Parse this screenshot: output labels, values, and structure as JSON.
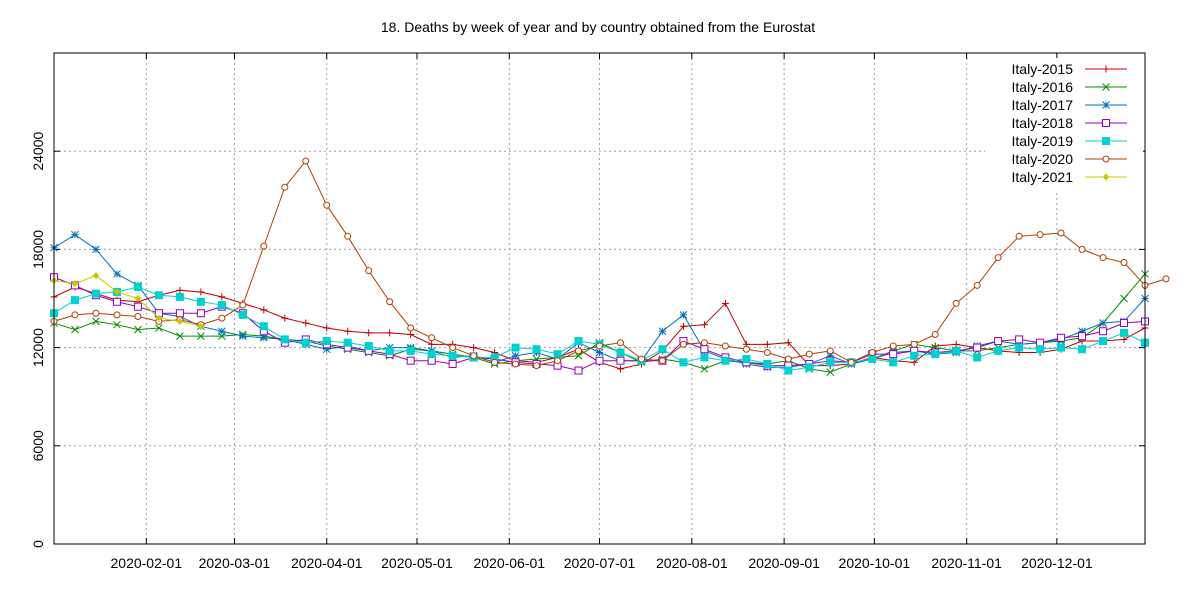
{
  "chart_data": {
    "type": "line",
    "title": "18. Deaths by week of year and by country obtained from the Eurostat",
    "xlabel": "",
    "ylabel": "",
    "ylim": [
      0,
      24000
    ],
    "yticks": [
      0,
      6000,
      12000,
      18000,
      24000
    ],
    "xlim": [
      0,
      52
    ],
    "xticks": [
      {
        "label": "2020-02-01",
        "week": 4.4
      },
      {
        "label": "2020-03-01",
        "week": 8.6
      },
      {
        "label": "2020-04-01",
        "week": 13.0
      },
      {
        "label": "2020-05-01",
        "week": 17.3
      },
      {
        "label": "2020-06-01",
        "week": 21.7
      },
      {
        "label": "2020-07-01",
        "week": 26.0
      },
      {
        "label": "2020-08-01",
        "week": 30.4
      },
      {
        "label": "2020-09-01",
        "week": 34.8
      },
      {
        "label": "2020-10-01",
        "week": 39.1
      },
      {
        "label": "2020-11-01",
        "week": 43.5
      },
      {
        "label": "2020-12-01",
        "week": 47.8
      }
    ],
    "grid": true,
    "legend_position": "top-right",
    "series": [
      {
        "name": "Italy-2015",
        "color": "#c00000",
        "marker": "plus",
        "start_week": 0,
        "values": [
          15100,
          15700,
          15300,
          14900,
          14800,
          15200,
          15500,
          15400,
          15100,
          14700,
          14300,
          13800,
          13500,
          13200,
          13000,
          12900,
          12900,
          12800,
          12200,
          12200,
          12000,
          11700,
          11200,
          11100,
          11400,
          11900,
          11100,
          10700,
          11000,
          11800,
          13300,
          13400,
          14700,
          12200,
          12200,
          12300,
          10900,
          10900,
          11000,
          11400,
          11200,
          11100,
          12100,
          12200,
          12000,
          11800,
          11700,
          11700,
          11900,
          12400,
          12400,
          12500,
          13200
        ]
      },
      {
        "name": "Italy-2016",
        "color": "#009000",
        "marker": "cross",
        "start_week": 0,
        "values": [
          13500,
          13100,
          13600,
          13400,
          13100,
          13200,
          12700,
          12700,
          12700,
          12800,
          12700,
          12500,
          12400,
          12100,
          11900,
          11700,
          11500,
          11900,
          11800,
          11600,
          11400,
          11000,
          11200,
          11300,
          11400,
          11500,
          12300,
          11700,
          11100,
          11300,
          11100,
          10700,
          11200,
          11100,
          11000,
          11200,
          10700,
          10500,
          11000,
          11300,
          11800,
          12200,
          12000,
          11800,
          11800,
          12000,
          12200,
          12300,
          12400,
          12600,
          13500,
          15000,
          16500
        ]
      },
      {
        "name": "Italy-2017",
        "color": "#0070c0",
        "marker": "star",
        "start_week": 0,
        "values": [
          18100,
          18900,
          18000,
          16500,
          15800,
          14100,
          13900,
          13300,
          13000,
          12700,
          12600,
          12500,
          12200,
          11900,
          12100,
          11800,
          12000,
          12000,
          11800,
          11400,
          11500,
          11100,
          11500,
          11700,
          11300,
          12300,
          11700,
          11200,
          11200,
          13000,
          14000,
          11800,
          11300,
          11000,
          10800,
          10800,
          11000,
          11500,
          11000,
          11300,
          11700,
          11800,
          11600,
          11700,
          12100,
          12400,
          12200,
          12300,
          12500,
          13000,
          13500,
          13600,
          15000
        ]
      },
      {
        "name": "Italy-2018",
        "color": "#9000c0",
        "marker": "square-open",
        "start_week": 0,
        "values": [
          16300,
          15800,
          15200,
          14800,
          14500,
          14100,
          14100,
          14100,
          14500,
          14100,
          13000,
          12300,
          12500,
          12200,
          12000,
          11800,
          11600,
          11200,
          11200,
          11000,
          11400,
          11300,
          11100,
          11000,
          10900,
          10600,
          11200,
          11200,
          11200,
          11200,
          12400,
          11900,
          11400,
          11100,
          10900,
          10900,
          11000,
          11200,
          11100,
          11600,
          11600,
          11800,
          11700,
          11800,
          12000,
          12400,
          12500,
          12300,
          12600,
          12700,
          13000,
          13500,
          13600
        ]
      },
      {
        "name": "Italy-2019",
        "color": "#00d0d0",
        "marker": "square-filled",
        "start_week": 0,
        "values": [
          14100,
          14900,
          15300,
          15400,
          15700,
          15200,
          15100,
          14800,
          14600,
          14000,
          13300,
          12500,
          12300,
          12400,
          12300,
          12100,
          11800,
          11800,
          11600,
          11500,
          11400,
          11400,
          12000,
          11900,
          11600,
          12400,
          12200,
          11700,
          11200,
          11900,
          11100,
          11400,
          11200,
          11300,
          11000,
          10600,
          10800,
          11100,
          11100,
          11300,
          11100,
          11500,
          11600,
          11800,
          11400,
          11800,
          12000,
          11900,
          12000,
          11900,
          12400,
          12900,
          12300
        ]
      },
      {
        "name": "Italy-2020",
        "color": "#b04000",
        "marker": "circle",
        "start_week": 0,
        "values": [
          13600,
          14000,
          14100,
          14000,
          13900,
          13600,
          13700,
          13400,
          13800,
          14600,
          18200,
          21800,
          23400,
          20700,
          18800,
          16700,
          14800,
          13200,
          12600,
          12000,
          11500,
          11100,
          11000,
          10900,
          11200,
          11800,
          12100,
          12300,
          11300,
          11200,
          12200,
          12300,
          12100,
          11900,
          11700,
          11300,
          11600,
          11800,
          11100,
          11700,
          12100,
          12200,
          12800,
          14700,
          15800,
          17500,
          18800,
          18900,
          19000,
          18000,
          17500,
          17200,
          15800,
          16200
        ]
      },
      {
        "name": "Italy-2021",
        "color": "#c8c800",
        "marker": "star-filled",
        "start_week": 0,
        "values": [
          16100,
          15900,
          16400,
          15400,
          15000,
          13800,
          13600,
          13300
        ]
      }
    ]
  }
}
